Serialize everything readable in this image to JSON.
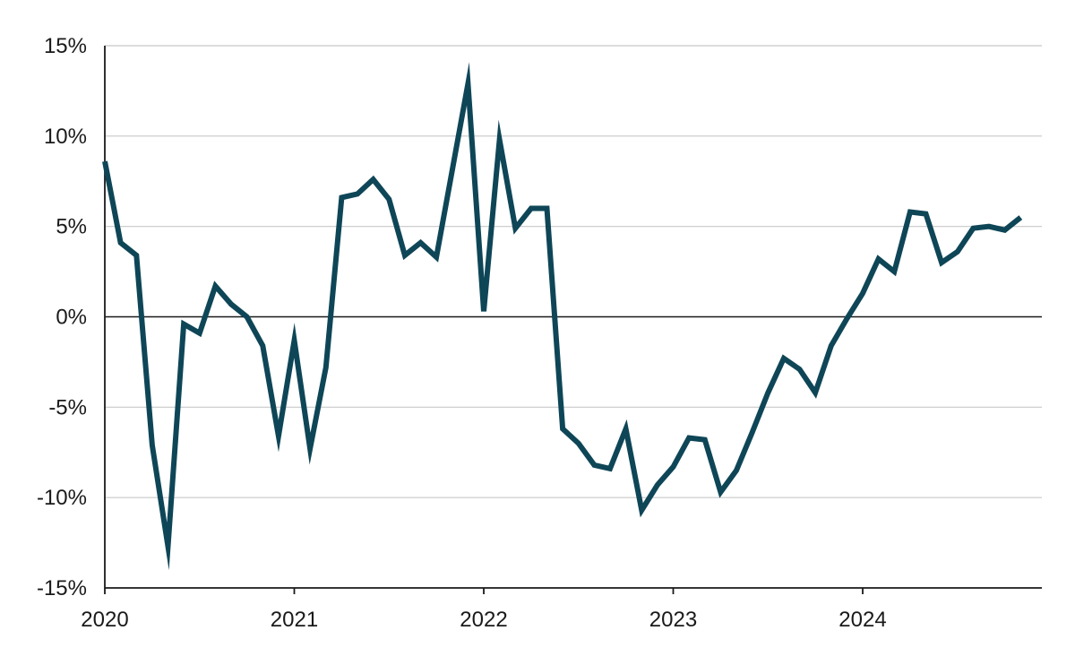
{
  "chart_data": {
    "type": "line",
    "title": "",
    "xlabel": "",
    "ylabel": "",
    "y_unit": "%",
    "ylim": [
      -15,
      15
    ],
    "y_ticks": [
      15,
      10,
      5,
      0,
      -5,
      -10,
      -15
    ],
    "y_tick_labels": [
      "15%",
      "10%",
      "5%",
      "0%",
      "-5%",
      "-10%",
      "-15%"
    ],
    "xlim": [
      "2020-01",
      "2024-12"
    ],
    "x_ticks": [
      "2020-01",
      "2021-01",
      "2022-01",
      "2023-01",
      "2024-01"
    ],
    "x_tick_labels": [
      "2020",
      "2021",
      "2022",
      "2023",
      "2024"
    ],
    "grid": "horizontal",
    "legend": "none",
    "colors": {
      "line": "#0e4657",
      "grid": "#c8c8c8",
      "axis": "#1a1a1a"
    },
    "series": [
      {
        "x": [
          "2020-01",
          "2020-02",
          "2020-03",
          "2020-04",
          "2020-05",
          "2020-06",
          "2020-07",
          "2020-08",
          "2020-09",
          "2020-10",
          "2020-11",
          "2020-12",
          "2021-01",
          "2021-02",
          "2021-03",
          "2021-04",
          "2021-05",
          "2021-06",
          "2021-07",
          "2021-08",
          "2021-09",
          "2021-10",
          "2021-11",
          "2021-12",
          "2022-01",
          "2022-02",
          "2022-03",
          "2022-04",
          "2022-05",
          "2022-06",
          "2022-07",
          "2022-08",
          "2022-09",
          "2022-10",
          "2022-11",
          "2022-12",
          "2023-01",
          "2023-02",
          "2023-03",
          "2023-04",
          "2023-05",
          "2023-06",
          "2023-07",
          "2023-08",
          "2023-09",
          "2023-10",
          "2023-11",
          "2023-12",
          "2024-01",
          "2024-02",
          "2024-03",
          "2024-04",
          "2024-05",
          "2024-06",
          "2024-07",
          "2024-08",
          "2024-09",
          "2024-10",
          "2024-11"
        ],
        "values": [
          8.6,
          4.1,
          3.4,
          -7.1,
          -12.7,
          -0.4,
          -0.9,
          1.7,
          0.7,
          0.0,
          -1.6,
          -6.6,
          -1.3,
          -7.3,
          -2.8,
          6.6,
          6.8,
          7.6,
          6.5,
          3.4,
          4.1,
          3.3,
          8.1,
          12.9,
          0.3,
          9.8,
          4.9,
          6.0,
          6.0,
          -6.2,
          -7.0,
          -8.2,
          -8.4,
          -6.2,
          -10.7,
          -9.3,
          -8.3,
          -6.7,
          -6.8,
          -9.7,
          -8.5,
          -6.4,
          -4.2,
          -2.3,
          -2.9,
          -4.2,
          -1.6,
          -0.1,
          1.3,
          3.2,
          2.5,
          5.8,
          5.7,
          3.0,
          3.6,
          4.9,
          5.0,
          4.8,
          5.5
        ]
      }
    ]
  }
}
